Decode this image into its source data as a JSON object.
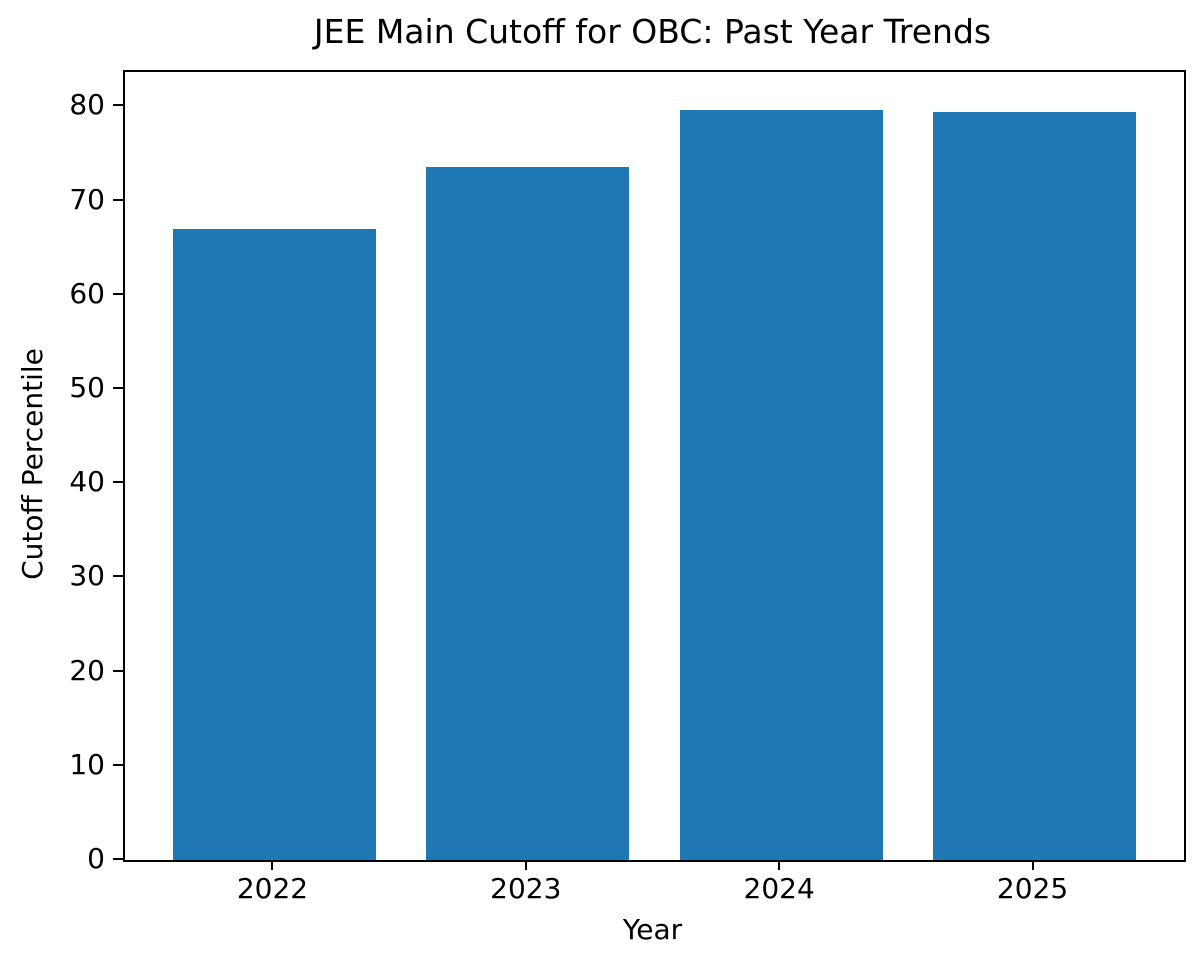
{
  "chart_data": {
    "type": "bar",
    "title": "JEE Main Cutoff for OBC: Past Year Trends",
    "xlabel": "Year",
    "ylabel": "Cutoff Percentile",
    "categories": [
      "2022",
      "2023",
      "2024",
      "2025"
    ],
    "values": [
      67.01,
      73.61,
      79.68,
      79.43
    ],
    "yticks": [
      0,
      10,
      20,
      30,
      40,
      50,
      60,
      70,
      80
    ],
    "ylim": [
      0,
      83.66
    ],
    "bar_width_fraction": 0.8,
    "bar_color": "#1f77b4",
    "axis_color": "#000000",
    "background_color": "#ffffff",
    "grid": false,
    "legend": false
  }
}
